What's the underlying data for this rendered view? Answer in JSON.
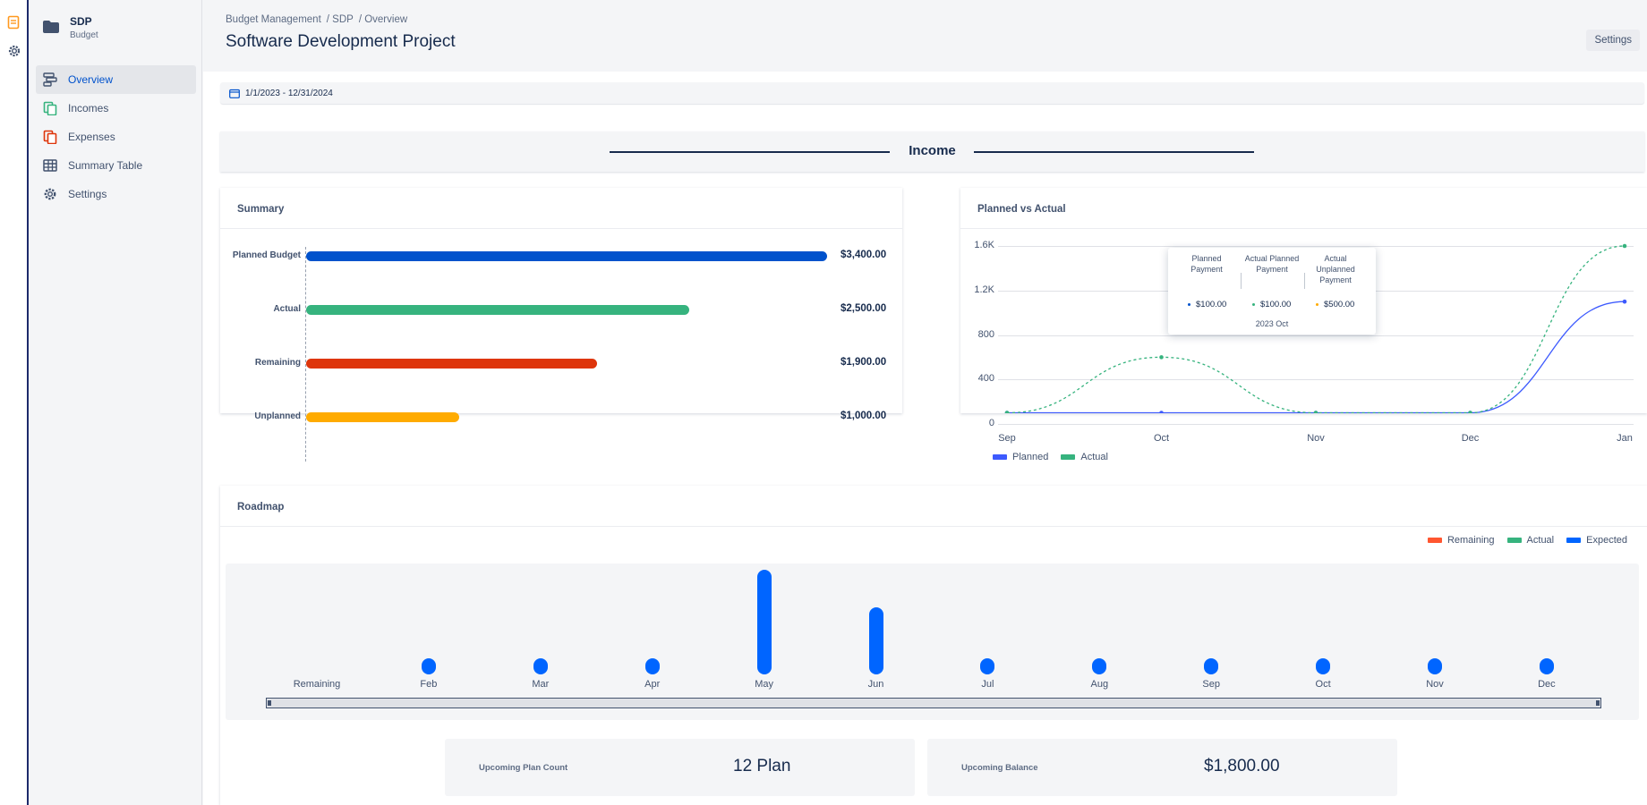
{
  "sidebar": {
    "project_name": "SDP",
    "project_type": "Budget",
    "items": [
      {
        "label": "Overview",
        "icon": "overview-icon"
      },
      {
        "label": "Incomes",
        "icon": "incomes-icon"
      },
      {
        "label": "Expenses",
        "icon": "expenses-icon"
      },
      {
        "label": "Summary Table",
        "icon": "table-icon"
      },
      {
        "label": "Settings",
        "icon": "gear-icon"
      }
    ]
  },
  "header": {
    "breadcrumbs": [
      "Budget Management",
      "/ SDP",
      "/ Overview"
    ],
    "title": "Software Development Project",
    "settings_label": "Settings"
  },
  "date_range": "1/1/2023 - 12/31/2024",
  "section_title": "Income",
  "summary": {
    "title": "Summary"
  },
  "planned_vs_actual": {
    "title": "Planned vs Actual",
    "tooltip": {
      "headers": [
        "Planned Payment",
        "Actual Planned Payment",
        "Actual Unplanned Payment"
      ],
      "values": [
        "$100.00",
        "$100.00",
        "$500.00"
      ],
      "period": "2023 Oct"
    }
  },
  "roadmap": {
    "title": "Roadmap",
    "legend": [
      "Remaining",
      "Actual",
      "Expected"
    ]
  },
  "cards": {
    "plan_count_label": "Upcoming Plan Count",
    "plan_count_value": "12 Plan",
    "balance_label": "Upcoming Balance",
    "balance_value": "$1,800.00"
  },
  "colors": {
    "accent": "#0052cc",
    "planned": "#0052cc",
    "actual": "#36b37e",
    "remaining": "#de350b",
    "unplanned": "#ffab00",
    "expected": "#0065ff",
    "roadmap_remaining": "#ff5630",
    "roadmap_actual": "#36b37e"
  },
  "chart_data": [
    {
      "type": "bar",
      "orientation": "horizontal",
      "title": "Summary",
      "categories": [
        "Planned Budget",
        "Actual",
        "Remaining",
        "Unplanned"
      ],
      "values": [
        3400,
        2500,
        1900,
        1000
      ],
      "value_labels": [
        "$3,400.00",
        "$2,500.00",
        "$1,900.00",
        "$1,000.00"
      ],
      "xlim": [
        0,
        3400
      ]
    },
    {
      "type": "line",
      "title": "Planned vs Actual",
      "x": [
        "Sep",
        "Oct",
        "Nov",
        "Dec",
        "Jan"
      ],
      "yticks": [
        "0",
        "400",
        "800",
        "1.2K",
        "1.6K"
      ],
      "ylim": [
        0,
        1600
      ],
      "grid": true,
      "legend": "bottom-left",
      "series": [
        {
          "name": "Planned",
          "values": [
            100,
            100,
            100,
            100,
            1100
          ]
        },
        {
          "name": "Actual",
          "values": [
            100,
            600,
            100,
            100,
            1600
          ]
        }
      ]
    },
    {
      "type": "bar",
      "title": "Roadmap",
      "categories": [
        "Remaining",
        "Feb",
        "Mar",
        "Apr",
        "May",
        "Jun",
        "Jul",
        "Aug",
        "Sep",
        "Oct",
        "Nov",
        "Dec"
      ],
      "legend": "top-right",
      "series": [
        {
          "name": "Expected",
          "values": [
            0,
            150,
            150,
            150,
            1400,
            900,
            150,
            150,
            150,
            150,
            150,
            150
          ]
        }
      ]
    }
  ]
}
